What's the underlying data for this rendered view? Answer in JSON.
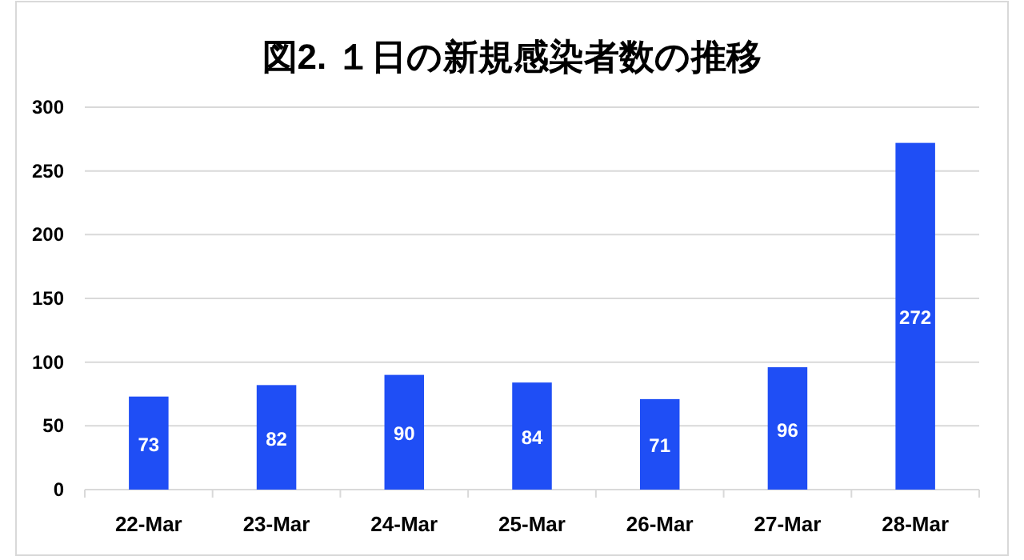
{
  "chart_data": {
    "type": "bar",
    "title": "図2. １日の新規感染者数の推移",
    "categories": [
      "22-Mar",
      "23-Mar",
      "24-Mar",
      "25-Mar",
      "26-Mar",
      "27-Mar",
      "28-Mar"
    ],
    "values": [
      73,
      82,
      90,
      84,
      71,
      96,
      272
    ],
    "color": "#1f4ef5",
    "ylim": [
      0,
      300
    ],
    "yticks": [
      0,
      50,
      100,
      150,
      200,
      250,
      300
    ],
    "grid": "y",
    "data_labels": true
  }
}
